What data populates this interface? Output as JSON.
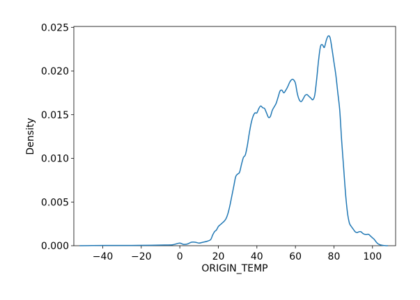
{
  "chart_data": {
    "type": "line",
    "title": "",
    "xlabel": "ORIGIN_TEMP",
    "ylabel": "Density",
    "xlim": [
      -55,
      112
    ],
    "ylim": [
      0,
      0.0251
    ],
    "xticks": [
      -40,
      -20,
      0,
      20,
      40,
      60,
      80,
      100
    ],
    "xtick_labels": [
      "−40",
      "−20",
      "0",
      "20",
      "40",
      "60",
      "80",
      "100"
    ],
    "yticks": [
      0,
      0.005,
      0.01,
      0.015,
      0.02,
      0.025
    ],
    "ytick_labels": [
      "0.000",
      "0.005",
      "0.010",
      "0.015",
      "0.020",
      "0.025"
    ],
    "grid": false,
    "legend": "none",
    "series": [
      {
        "color": "#1f77b4",
        "x": [
          -52,
          -45,
          -35,
          -25,
          -15,
          -8,
          -4,
          -2,
          0,
          2,
          4,
          6,
          8,
          10,
          12,
          14,
          16,
          17,
          18,
          19,
          20,
          21,
          22,
          23,
          24,
          25,
          26,
          27,
          28,
          29,
          30,
          31,
          32,
          33,
          34,
          35,
          36,
          37,
          38,
          39,
          40,
          41,
          42,
          43,
          44,
          45,
          46,
          47,
          48,
          49,
          50,
          51,
          52,
          53,
          54,
          55,
          56,
          57,
          58,
          59,
          60,
          61,
          62,
          63,
          64,
          65,
          66,
          67,
          68,
          69,
          70,
          71,
          72,
          73,
          74,
          75,
          76,
          77,
          78,
          79,
          80,
          81,
          82,
          83,
          84,
          85,
          86,
          87,
          88,
          89,
          90,
          91,
          92,
          93,
          94,
          95,
          96,
          97,
          98,
          99,
          100,
          101,
          102,
          103,
          104,
          105,
          106,
          107,
          108
        ],
        "y": [
          0.0,
          2e-05,
          3e-05,
          3e-05,
          5e-05,
          8e-05,
          0.0001,
          0.0002,
          0.0003,
          0.00015,
          0.0002,
          0.0004,
          0.0004,
          0.0003,
          0.0004,
          0.0005,
          0.0007,
          0.0012,
          0.0016,
          0.0018,
          0.0022,
          0.0024,
          0.0026,
          0.0028,
          0.0031,
          0.0037,
          0.0046,
          0.0057,
          0.0068,
          0.0079,
          0.0082,
          0.0084,
          0.0093,
          0.0101,
          0.0104,
          0.0114,
          0.0128,
          0.014,
          0.0148,
          0.0152,
          0.0152,
          0.0157,
          0.016,
          0.0158,
          0.0157,
          0.0152,
          0.0147,
          0.0148,
          0.0155,
          0.0159,
          0.0163,
          0.017,
          0.0177,
          0.0178,
          0.0175,
          0.0178,
          0.0182,
          0.0187,
          0.019,
          0.019,
          0.0186,
          0.0174,
          0.0167,
          0.0165,
          0.0168,
          0.0172,
          0.0173,
          0.0171,
          0.0169,
          0.0167,
          0.0172,
          0.019,
          0.0212,
          0.0228,
          0.023,
          0.0227,
          0.0235,
          0.024,
          0.0238,
          0.0225,
          0.021,
          0.0195,
          0.0175,
          0.0155,
          0.012,
          0.009,
          0.006,
          0.0038,
          0.0026,
          0.0022,
          0.0019,
          0.0016,
          0.0015,
          0.0016,
          0.0016,
          0.0014,
          0.0013,
          0.0013,
          0.0013,
          0.0011,
          0.0009,
          0.0007,
          0.0004,
          0.0002,
          0.0001,
          5e-05,
          2e-05,
          0.0,
          0.0
        ]
      }
    ]
  }
}
